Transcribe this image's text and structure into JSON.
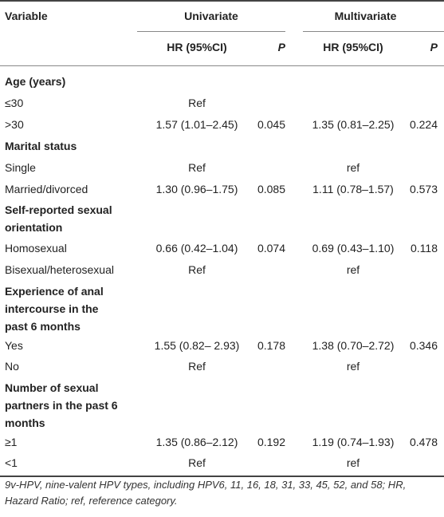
{
  "header": {
    "variable": "Variable",
    "univariate": "Univariate",
    "multivariate": "Multivariate",
    "hr_label": "HR (95%CI)",
    "p_label": "P"
  },
  "sections": {
    "age": {
      "title": "Age (years)",
      "rows": [
        {
          "label": "≤30",
          "hr1": "Ref",
          "p1": "",
          "hr2": "",
          "p2": ""
        },
        {
          "label": ">30",
          "hr1": "1.57 (1.01–2.45)",
          "p1": "0.045",
          "hr2": "1.35 (0.81–2.25)",
          "p2": "0.224"
        }
      ]
    },
    "marital": {
      "title": "Marital status",
      "rows": [
        {
          "label": "Single",
          "hr1": "Ref",
          "p1": "",
          "hr2": "ref",
          "p2": ""
        },
        {
          "label": "Married/divorced",
          "hr1": "1.30 (0.96–1.75)",
          "p1": "0.085",
          "hr2": "1.11 (0.78–1.57)",
          "p2": "0.573"
        }
      ]
    },
    "orientation": {
      "title_line1": "Self-reported sexual",
      "title_line2": "orientation",
      "rows": [
        {
          "label": "Homosexual",
          "hr1": "0.66 (0.42–1.04)",
          "p1": "0.074",
          "hr2": "0.69 (0.43–1.10)",
          "p2": "0.118"
        },
        {
          "label": "Bisexual/heterosexual",
          "hr1": "Ref",
          "p1": "",
          "hr2": "ref",
          "p2": ""
        }
      ]
    },
    "anal": {
      "title_line1": "Experience of anal",
      "title_line2": "intercourse in the",
      "title_line3": "past 6 months",
      "rows": [
        {
          "label": "Yes",
          "hr1": "1.55 (0.82– 2.93)",
          "p1": "0.178",
          "hr2": "1.38 (0.70–2.72)",
          "p2": "0.346"
        },
        {
          "label": "No",
          "hr1": "Ref",
          "p1": "",
          "hr2": "ref",
          "p2": ""
        }
      ]
    },
    "partners": {
      "title_line1": "Number of sexual",
      "title_line2": "partners in the past 6",
      "title_line3": "months",
      "rows": [
        {
          "label": "≥1",
          "hr1": "1.35 (0.86–2.12)",
          "p1": "0.192",
          "hr2": "1.19 (0.74–1.93)",
          "p2": "0.478"
        },
        {
          "label": "<1",
          "hr1": "Ref",
          "p1": "",
          "hr2": "ref",
          "p2": ""
        }
      ]
    }
  },
  "footnote": "9v-HPV, nine-valent HPV types, including HPV6, 11, 16, 18, 31, 33, 45, 52, and 58; HR, Hazard Ratio; ref, reference category."
}
